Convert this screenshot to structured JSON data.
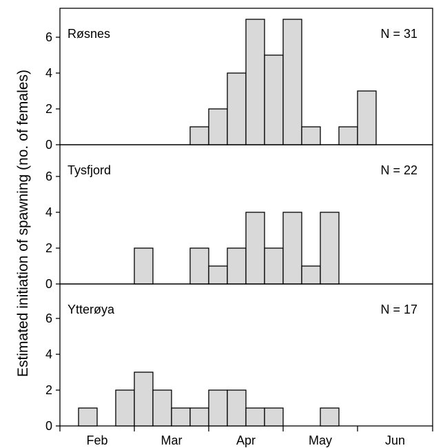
{
  "chart_data": {
    "type": "bar",
    "ylabel": "Estimated initiation of spawning (no. of females)",
    "xlabel": "",
    "x_tick_labels": [
      "Feb",
      "Mar",
      "Apr",
      "May",
      "Jun"
    ],
    "bin_labels": [
      "Feb 1-8",
      "Feb 9-16",
      "Feb 17-24",
      "Feb 25-Mar 4",
      "Mar 5-12",
      "Mar 13-20",
      "Mar 21-28",
      "Mar 29-Apr 5",
      "Apr 6-13",
      "Apr 14-21",
      "Apr 22-29",
      "Apr 30-May 7",
      "May 8-15",
      "May 16-23",
      "May 24-31",
      "Jun 1-8",
      "Jun 9-16",
      "Jun 17-24",
      "Jun 25-30"
    ],
    "ylim": [
      0,
      7.5
    ],
    "y_ticks": [
      0,
      2,
      4,
      6
    ],
    "bar_color": "#d9d9d9",
    "panels": [
      {
        "name": "Røsnes",
        "n_label": "N = 31",
        "values": [
          0,
          0,
          0,
          0,
          0,
          0,
          0,
          1,
          2,
          4,
          7,
          5,
          7,
          1,
          0,
          1,
          3,
          0,
          0
        ]
      },
      {
        "name": "Tysfjord",
        "n_label": "N = 22",
        "values": [
          0,
          0,
          0,
          0,
          2,
          0,
          0,
          2,
          1,
          2,
          4,
          2,
          4,
          1,
          4,
          0,
          0,
          0,
          0
        ]
      },
      {
        "name": "Ytterøya",
        "n_label": "N = 17",
        "values": [
          0,
          1,
          0,
          2,
          3,
          2,
          1,
          1,
          2,
          2,
          1,
          1,
          0,
          0,
          1,
          0,
          0,
          0,
          0
        ]
      }
    ]
  }
}
